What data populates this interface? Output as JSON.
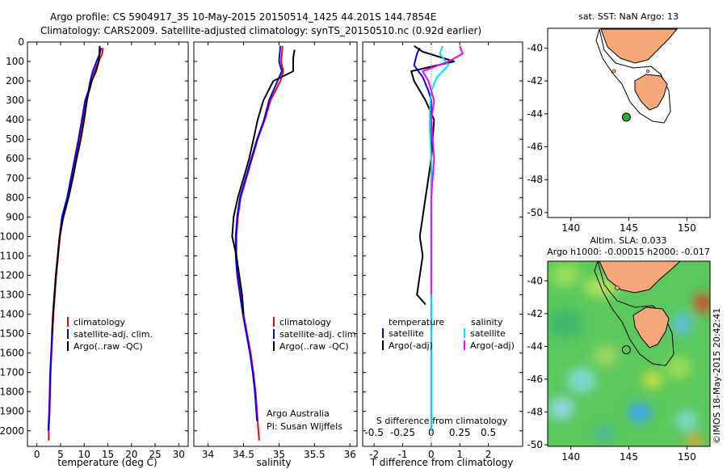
{
  "header": {
    "line1": "Argo profile: CS 5904917_35 10-May-2015 20150514_1425 44.201S 144.7854E",
    "line2": "Climatology: CARS2009. Satellite-adjusted climatology: synTS_20150510.nc (0.92d earlier)"
  },
  "credits": {
    "line1": "Argo Australia",
    "line2": "PI: Susan Wijffels",
    "stamp": "©IMOS 18-May-2015 20:42:41"
  },
  "colors": {
    "climatology": "#ff0000",
    "satellite": "#0000ff",
    "argo": "#000000",
    "sal_satellite": "#00e5ee",
    "sal_argo": "#ff00ff",
    "land": "#f5a878",
    "marker_green": "#33aa33"
  },
  "chart_data": [
    {
      "type": "line",
      "id": "temperature",
      "xlabel": "temperature (deg C)",
      "ylabel": "",
      "xlim": [
        -2,
        32
      ],
      "ylim": [
        2080,
        0
      ],
      "xticks": [
        0,
        5,
        10,
        15,
        20,
        25,
        30
      ],
      "yticks": [
        0,
        100,
        200,
        300,
        400,
        500,
        600,
        700,
        800,
        900,
        1000,
        1100,
        1200,
        1300,
        1400,
        1500,
        1600,
        1700,
        1800,
        1900,
        2000
      ],
      "legend": [
        "climatology",
        "satellite-adj. clim.",
        "Argo(..raw -QC)"
      ],
      "series": [
        {
          "name": "climatology",
          "color": "#ff0000",
          "x": [
            14.0,
            13.8,
            13.0,
            12.2,
            11.6,
            11.1,
            10.4,
            9.7,
            9.0,
            8.2,
            7.4,
            6.6,
            5.5,
            4.9,
            4.5,
            4.1,
            3.8,
            3.5,
            3.3,
            3.1,
            2.9,
            2.8,
            2.7,
            2.6,
            2.5,
            2.5
          ],
          "y": [
            30,
            60,
            100,
            150,
            200,
            250,
            300,
            400,
            500,
            600,
            700,
            800,
            900,
            1000,
            1100,
            1200,
            1300,
            1400,
            1500,
            1600,
            1700,
            1800,
            1900,
            1950,
            2000,
            2050
          ]
        },
        {
          "name": "satellite-adj. clim.",
          "color": "#0000ff",
          "x": [
            13.6,
            13.3,
            12.6,
            11.8,
            11.3,
            10.9,
            10.2,
            9.5,
            8.8,
            8.0,
            7.2,
            6.4,
            5.3,
            4.8,
            4.4,
            4.0,
            3.7,
            3.4,
            3.2,
            3.0,
            2.8,
            2.7,
            2.6,
            2.5,
            2.4
          ],
          "y": [
            30,
            60,
            100,
            150,
            200,
            250,
            300,
            400,
            500,
            600,
            700,
            800,
            900,
            1000,
            1100,
            1200,
            1300,
            1400,
            1500,
            1600,
            1700,
            1800,
            1900,
            1950,
            2000
          ]
        },
        {
          "name": "Argo(..raw -QC)",
          "color": "#000000",
          "x": [
            13.3,
            13.2,
            13.1,
            12.5,
            11.6,
            11.0,
            10.6,
            10.0,
            9.3,
            8.4,
            7.6,
            6.7,
            5.6,
            4.8,
            4.4,
            4.0,
            3.7,
            3.4,
            3.2
          ],
          "y": [
            20,
            60,
            100,
            150,
            200,
            250,
            300,
            400,
            500,
            600,
            700,
            800,
            900,
            1000,
            1100,
            1200,
            1300,
            1400,
            1500
          ]
        }
      ]
    },
    {
      "type": "line",
      "id": "salinity",
      "xlabel": "salinity",
      "ylabel": "",
      "xlim": [
        33.8,
        36.1
      ],
      "ylim": [
        2080,
        0
      ],
      "xticks": [
        34,
        34.5,
        35,
        35.5,
        36
      ],
      "legend": [
        "climatology",
        "satellite-adj. clim.",
        "Argo(..raw -QC)"
      ],
      "series": [
        {
          "name": "climatology",
          "color": "#ff0000",
          "x": [
            35.05,
            35.04,
            35.03,
            35.06,
            35.02,
            34.88,
            34.8,
            34.7,
            34.62,
            34.54,
            34.46,
            34.42,
            34.4,
            34.4,
            34.42,
            34.46,
            34.5,
            34.55,
            34.6,
            34.64,
            34.67,
            34.69,
            34.7,
            34.71,
            34.72
          ],
          "y": [
            20,
            60,
            100,
            150,
            200,
            300,
            400,
            500,
            600,
            700,
            800,
            900,
            1000,
            1100,
            1200,
            1300,
            1400,
            1500,
            1600,
            1700,
            1800,
            1900,
            1950,
            2000,
            2050
          ]
        },
        {
          "name": "satellite-adj. clim.",
          "color": "#0000ff",
          "x": [
            35.02,
            35.01,
            35.0,
            35.04,
            34.98,
            34.86,
            34.79,
            34.69,
            34.61,
            34.53,
            34.45,
            34.41,
            34.39,
            34.39,
            34.41,
            34.45,
            34.49,
            34.54,
            34.59,
            34.63,
            34.66,
            34.68,
            34.69
          ],
          "y": [
            20,
            60,
            100,
            150,
            200,
            300,
            400,
            500,
            600,
            700,
            800,
            900,
            1000,
            1100,
            1200,
            1300,
            1400,
            1500,
            1600,
            1700,
            1800,
            1900,
            1950
          ]
        },
        {
          "name": "Argo(..raw -QC)",
          "color": "#000000",
          "x": [
            35.22,
            35.2,
            35.2,
            34.92,
            34.78,
            34.7,
            34.64,
            34.58,
            34.5,
            34.42,
            34.36,
            34.34,
            34.4,
            34.44,
            34.48,
            34.5
          ],
          "y": [
            40,
            80,
            150,
            200,
            300,
            400,
            500,
            600,
            700,
            800,
            900,
            1000,
            1100,
            1200,
            1300,
            1400
          ]
        }
      ]
    },
    {
      "type": "line",
      "id": "differences",
      "xlabel": "T difference from climatology",
      "xlabel2": "S difference from climatology",
      "xlim": [
        -2.4,
        3.2
      ],
      "ylim": [
        2080,
        0
      ],
      "xticks": [
        -2,
        -1,
        0,
        1,
        2
      ],
      "xticks_s": [
        -0.5,
        -0.25,
        0,
        0.25,
        0.5
      ],
      "xticks_s_labels": [
        "-0.5",
        "-0.25",
        "0",
        "0.25",
        "0.5"
      ],
      "legend_titles": [
        "temperature",
        "salinity"
      ],
      "legend": [
        "satellite",
        "Argo(-adj)",
        "satellite",
        "Argo(-adj)"
      ],
      "series": [
        {
          "name": "temperature satellite",
          "color": "#0000ff",
          "x": [
            -0.4,
            -0.5,
            -0.6,
            -0.3,
            -0.1,
            0.0,
            0.0,
            0.0,
            0.0,
            0.0,
            0.0,
            0.0,
            0.0,
            0.0
          ],
          "y": [
            30,
            60,
            120,
            180,
            250,
            300,
            400,
            600,
            800,
            1000,
            1200,
            1500,
            1800,
            2000
          ]
        },
        {
          "name": "temperature Argo(-adj)",
          "color": "#000000",
          "x": [
            -0.6,
            -0.3,
            0.8,
            -0.7,
            -0.6,
            -0.2,
            0.1,
            0.0,
            -0.2,
            -0.4,
            -0.3,
            -0.4,
            -0.5,
            -0.2
          ],
          "y": [
            20,
            50,
            100,
            150,
            200,
            300,
            400,
            600,
            800,
            1000,
            1100,
            1200,
            1300,
            1350
          ]
        },
        {
          "name": "salinity satellite",
          "color": "#00e5ee",
          "x": [
            0.4,
            0.3,
            0.6,
            0.2,
            0.0,
            -0.05,
            -0.05,
            0.0,
            0.0,
            0.0,
            0.0,
            0.0,
            0.0,
            0.0
          ],
          "y": [
            20,
            60,
            120,
            180,
            250,
            350,
            450,
            600,
            800,
            1000,
            1200,
            1500,
            1800,
            2000
          ]
        },
        {
          "name": "salinity Argo(-adj)",
          "color": "#ff00ff",
          "x": [
            1.0,
            1.1,
            0.6,
            -0.3,
            -0.1,
            0.1,
            0.0,
            0.1,
            0.0,
            0.0,
            0.0,
            0.0
          ],
          "y": [
            20,
            60,
            100,
            150,
            200,
            300,
            400,
            600,
            800,
            1000,
            1200,
            1300
          ]
        }
      ]
    },
    {
      "type": "scatter",
      "id": "sst-map",
      "title": "sat. SST: NaN  Argo: 13",
      "xlim": [
        138,
        152
      ],
      "ylim": [
        -50.3,
        -38.8
      ],
      "xticks": [
        140,
        145,
        150
      ],
      "yticks": [
        -40,
        -42,
        -44,
        -46,
        -48,
        -50
      ],
      "float_position": {
        "lon": 144.7854,
        "lat": -44.201
      }
    },
    {
      "type": "heatmap",
      "id": "sla-map",
      "title": "Altim. SLA: 0.033",
      "subtitle": "Argo h1000: -0.00015  h2000: -0.017",
      "xlim": [
        138,
        152
      ],
      "ylim": [
        -50.1,
        -38.8
      ],
      "xticks": [
        140,
        145,
        150
      ],
      "yticks": [
        -40,
        -42,
        -44,
        -46,
        -48,
        -50
      ],
      "float_position": {
        "lon": 144.7854,
        "lat": -44.201
      }
    }
  ]
}
